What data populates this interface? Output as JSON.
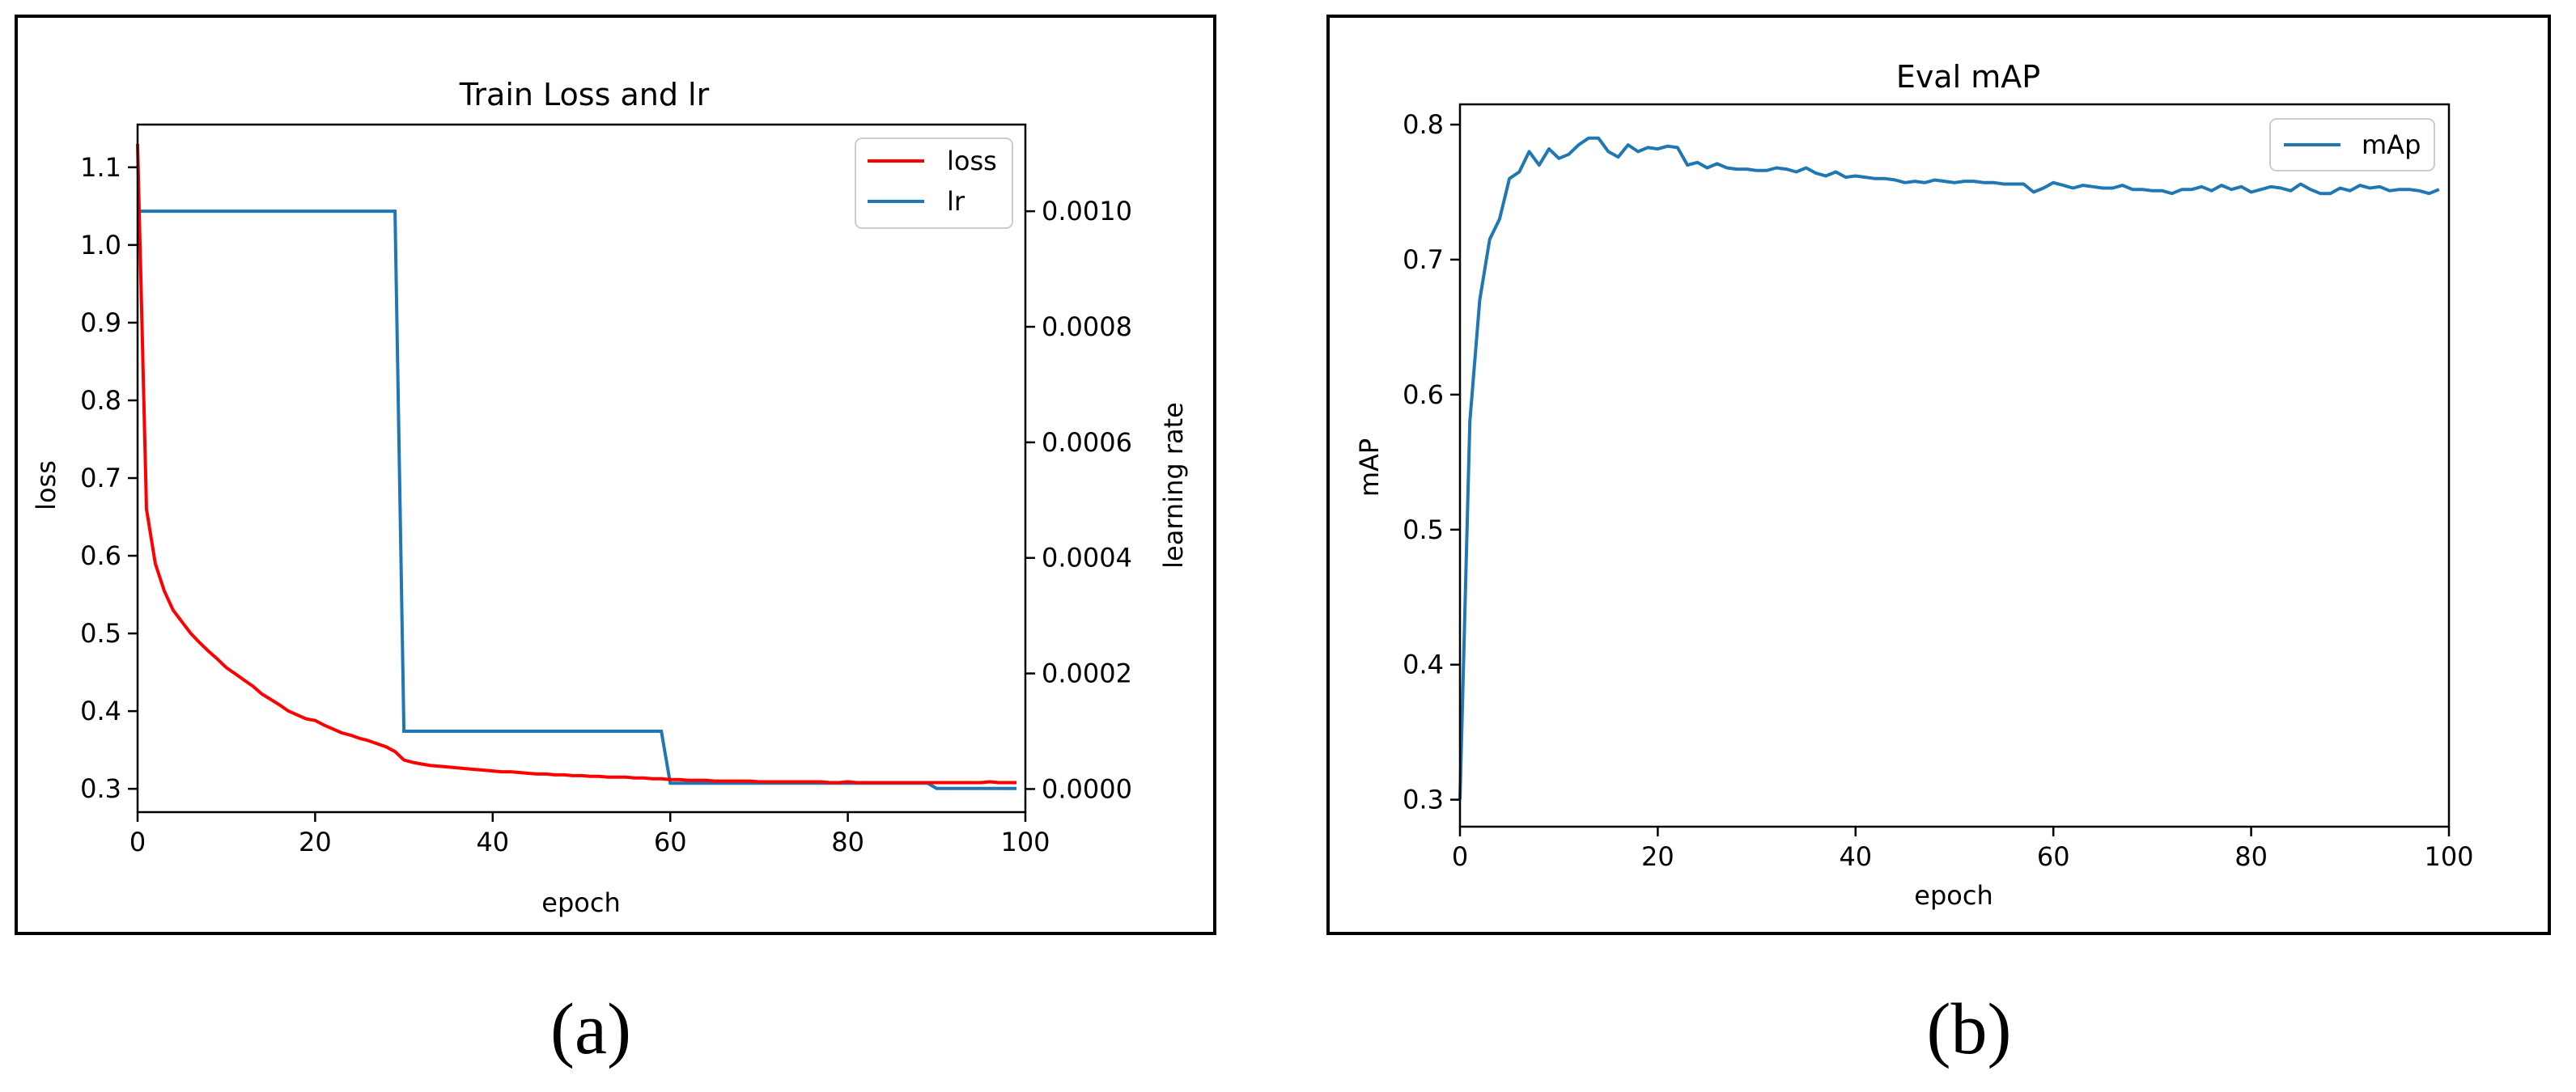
{
  "panels": {
    "a_caption": "(a)",
    "b_caption": "(b)"
  },
  "chart_data": [
    {
      "type": "line",
      "title": "Train Loss and lr",
      "xlabel": "epoch",
      "ylabel": "loss",
      "ylabel_right": "learning rate",
      "xlim": [
        0,
        100
      ],
      "ylim": [
        0.27,
        1.155
      ],
      "ylim_right": [
        -4e-05,
        0.00115
      ],
      "xticks": [
        0,
        20,
        40,
        60,
        80,
        100
      ],
      "yticks": [
        0.3,
        0.4,
        0.5,
        0.6,
        0.7,
        0.8,
        0.9,
        1.0,
        1.1
      ],
      "yticks_right": [
        "0.0000",
        "0.0002",
        "0.0004",
        "0.0006",
        "0.0008",
        "0.0010"
      ],
      "yticks_right_values": [
        0,
        0.0002,
        0.0004,
        0.0006,
        0.0008,
        0.001
      ],
      "grid": false,
      "legend": "top-right",
      "series": [
        {
          "name": "loss",
          "axis": "left",
          "color": "#ff0000",
          "x": [
            0,
            1,
            2,
            3,
            4,
            5,
            6,
            7,
            8,
            9,
            10,
            11,
            12,
            13,
            14,
            15,
            16,
            17,
            18,
            19,
            20,
            21,
            22,
            23,
            24,
            25,
            26,
            27,
            28,
            29,
            30,
            31,
            32,
            33,
            34,
            35,
            36,
            37,
            38,
            39,
            40,
            41,
            42,
            43,
            44,
            45,
            46,
            47,
            48,
            49,
            50,
            51,
            52,
            53,
            54,
            55,
            56,
            57,
            58,
            59,
            60,
            61,
            62,
            63,
            64,
            65,
            66,
            67,
            68,
            69,
            70,
            71,
            72,
            73,
            74,
            75,
            76,
            77,
            78,
            79,
            80,
            81,
            82,
            83,
            84,
            85,
            86,
            87,
            88,
            89,
            90,
            91,
            92,
            93,
            94,
            95,
            96,
            97,
            98,
            99
          ],
          "values": [
            1.13,
            0.66,
            0.59,
            0.555,
            0.53,
            0.515,
            0.5,
            0.488,
            0.477,
            0.467,
            0.456,
            0.448,
            0.44,
            0.432,
            0.422,
            0.415,
            0.408,
            0.4,
            0.395,
            0.39,
            0.388,
            0.382,
            0.377,
            0.372,
            0.369,
            0.365,
            0.362,
            0.358,
            0.354,
            0.348,
            0.337,
            0.334,
            0.332,
            0.33,
            0.329,
            0.328,
            0.327,
            0.326,
            0.325,
            0.324,
            0.323,
            0.322,
            0.322,
            0.321,
            0.32,
            0.319,
            0.319,
            0.318,
            0.318,
            0.317,
            0.317,
            0.316,
            0.316,
            0.315,
            0.315,
            0.315,
            0.314,
            0.314,
            0.313,
            0.313,
            0.312,
            0.312,
            0.311,
            0.311,
            0.311,
            0.31,
            0.31,
            0.31,
            0.31,
            0.31,
            0.309,
            0.309,
            0.309,
            0.309,
            0.309,
            0.309,
            0.309,
            0.309,
            0.308,
            0.308,
            0.309,
            0.308,
            0.308,
            0.308,
            0.308,
            0.308,
            0.308,
            0.308,
            0.308,
            0.308,
            0.308,
            0.308,
            0.308,
            0.308,
            0.308,
            0.308,
            0.309,
            0.308,
            0.308,
            0.308
          ]
        },
        {
          "name": "lr",
          "axis": "right",
          "color": "#1f77b4",
          "x": [
            0,
            29,
            30,
            59,
            60,
            89,
            90,
            99
          ],
          "values": [
            0.001,
            0.001,
            0.0001,
            0.0001,
            1e-05,
            1e-05,
            1e-06,
            1e-06
          ]
        }
      ]
    },
    {
      "type": "line",
      "title": "Eval mAP",
      "xlabel": "epoch",
      "ylabel": "mAP",
      "xlim": [
        0,
        100
      ],
      "ylim": [
        0.28,
        0.815
      ],
      "xticks": [
        0,
        20,
        40,
        60,
        80,
        100
      ],
      "yticks": [
        0.3,
        0.4,
        0.5,
        0.6,
        0.7,
        0.8
      ],
      "grid": false,
      "legend": "top-right",
      "series": [
        {
          "name": "mAp",
          "color": "#1f77b4",
          "x": [
            0,
            1,
            2,
            3,
            4,
            5,
            6,
            7,
            8,
            9,
            10,
            11,
            12,
            13,
            14,
            15,
            16,
            17,
            18,
            19,
            20,
            21,
            22,
            23,
            24,
            25,
            26,
            27,
            28,
            29,
            30,
            31,
            32,
            33,
            34,
            35,
            36,
            37,
            38,
            39,
            40,
            41,
            42,
            43,
            44,
            45,
            46,
            47,
            48,
            49,
            50,
            51,
            52,
            53,
            54,
            55,
            56,
            57,
            58,
            59,
            60,
            61,
            62,
            63,
            64,
            65,
            66,
            67,
            68,
            69,
            70,
            71,
            72,
            73,
            74,
            75,
            76,
            77,
            78,
            79,
            80,
            81,
            82,
            83,
            84,
            85,
            86,
            87,
            88,
            89,
            90,
            91,
            92,
            93,
            94,
            95,
            96,
            97,
            98,
            99
          ],
          "values": [
            0.3,
            0.58,
            0.67,
            0.715,
            0.73,
            0.76,
            0.765,
            0.78,
            0.77,
            0.782,
            0.775,
            0.778,
            0.785,
            0.79,
            0.79,
            0.78,
            0.776,
            0.785,
            0.78,
            0.783,
            0.782,
            0.784,
            0.783,
            0.77,
            0.772,
            0.768,
            0.771,
            0.768,
            0.767,
            0.767,
            0.766,
            0.766,
            0.768,
            0.767,
            0.765,
            0.768,
            0.764,
            0.762,
            0.765,
            0.761,
            0.762,
            0.761,
            0.76,
            0.76,
            0.759,
            0.757,
            0.758,
            0.757,
            0.759,
            0.758,
            0.757,
            0.758,
            0.758,
            0.757,
            0.757,
            0.756,
            0.756,
            0.756,
            0.75,
            0.753,
            0.757,
            0.755,
            0.753,
            0.755,
            0.754,
            0.753,
            0.753,
            0.755,
            0.752,
            0.752,
            0.751,
            0.751,
            0.749,
            0.752,
            0.752,
            0.754,
            0.751,
            0.755,
            0.752,
            0.754,
            0.75,
            0.752,
            0.754,
            0.753,
            0.751,
            0.756,
            0.752,
            0.749,
            0.749,
            0.753,
            0.751,
            0.755,
            0.753,
            0.754,
            0.751,
            0.752,
            0.752,
            0.751,
            0.749,
            0.752
          ]
        }
      ]
    }
  ]
}
